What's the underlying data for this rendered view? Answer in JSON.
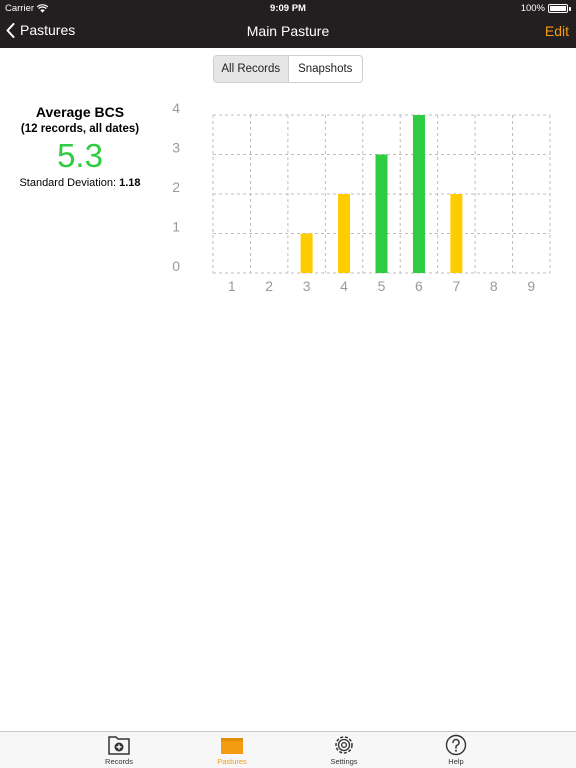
{
  "status_bar": {
    "carrier": "Carrier",
    "time": "9:09 PM",
    "battery": "100%"
  },
  "nav": {
    "back_label": "Pastures",
    "title": "Main Pasture",
    "edit_label": "Edit"
  },
  "segmented": {
    "options": [
      "All Records",
      "Snapshots"
    ],
    "selected": "All Records"
  },
  "stats": {
    "label": "Average BCS",
    "subtitle": "(12 records, all dates)",
    "average": "5.3",
    "sd_label": "Standard Deviation:",
    "sd_value": "1.18"
  },
  "colors": {
    "accent": "#f39c12",
    "good": "#2ecc40",
    "fair": "#ffcc00"
  },
  "chart_data": {
    "type": "bar",
    "categories": [
      "1",
      "2",
      "3",
      "4",
      "5",
      "6",
      "7",
      "8",
      "9"
    ],
    "values": [
      0,
      0,
      1,
      2,
      3,
      4,
      2,
      0,
      0
    ],
    "bar_colors": [
      "#ffcc00",
      "#ffcc00",
      "#ffcc00",
      "#ffcc00",
      "#2ecc40",
      "#2ecc40",
      "#ffcc00",
      "#ffcc00",
      "#ffcc00"
    ],
    "yticks": [
      "0",
      "1",
      "2",
      "3",
      "4"
    ],
    "ylim": [
      0,
      4
    ],
    "grid": true,
    "title": "",
    "xlabel": "",
    "ylabel": ""
  },
  "tabs": [
    {
      "label": "Records",
      "icon": "records-icon"
    },
    {
      "label": "Pastures",
      "icon": "pastures-icon",
      "active": true
    },
    {
      "label": "Settings",
      "icon": "gear-icon"
    },
    {
      "label": "Help",
      "icon": "help-icon"
    }
  ]
}
